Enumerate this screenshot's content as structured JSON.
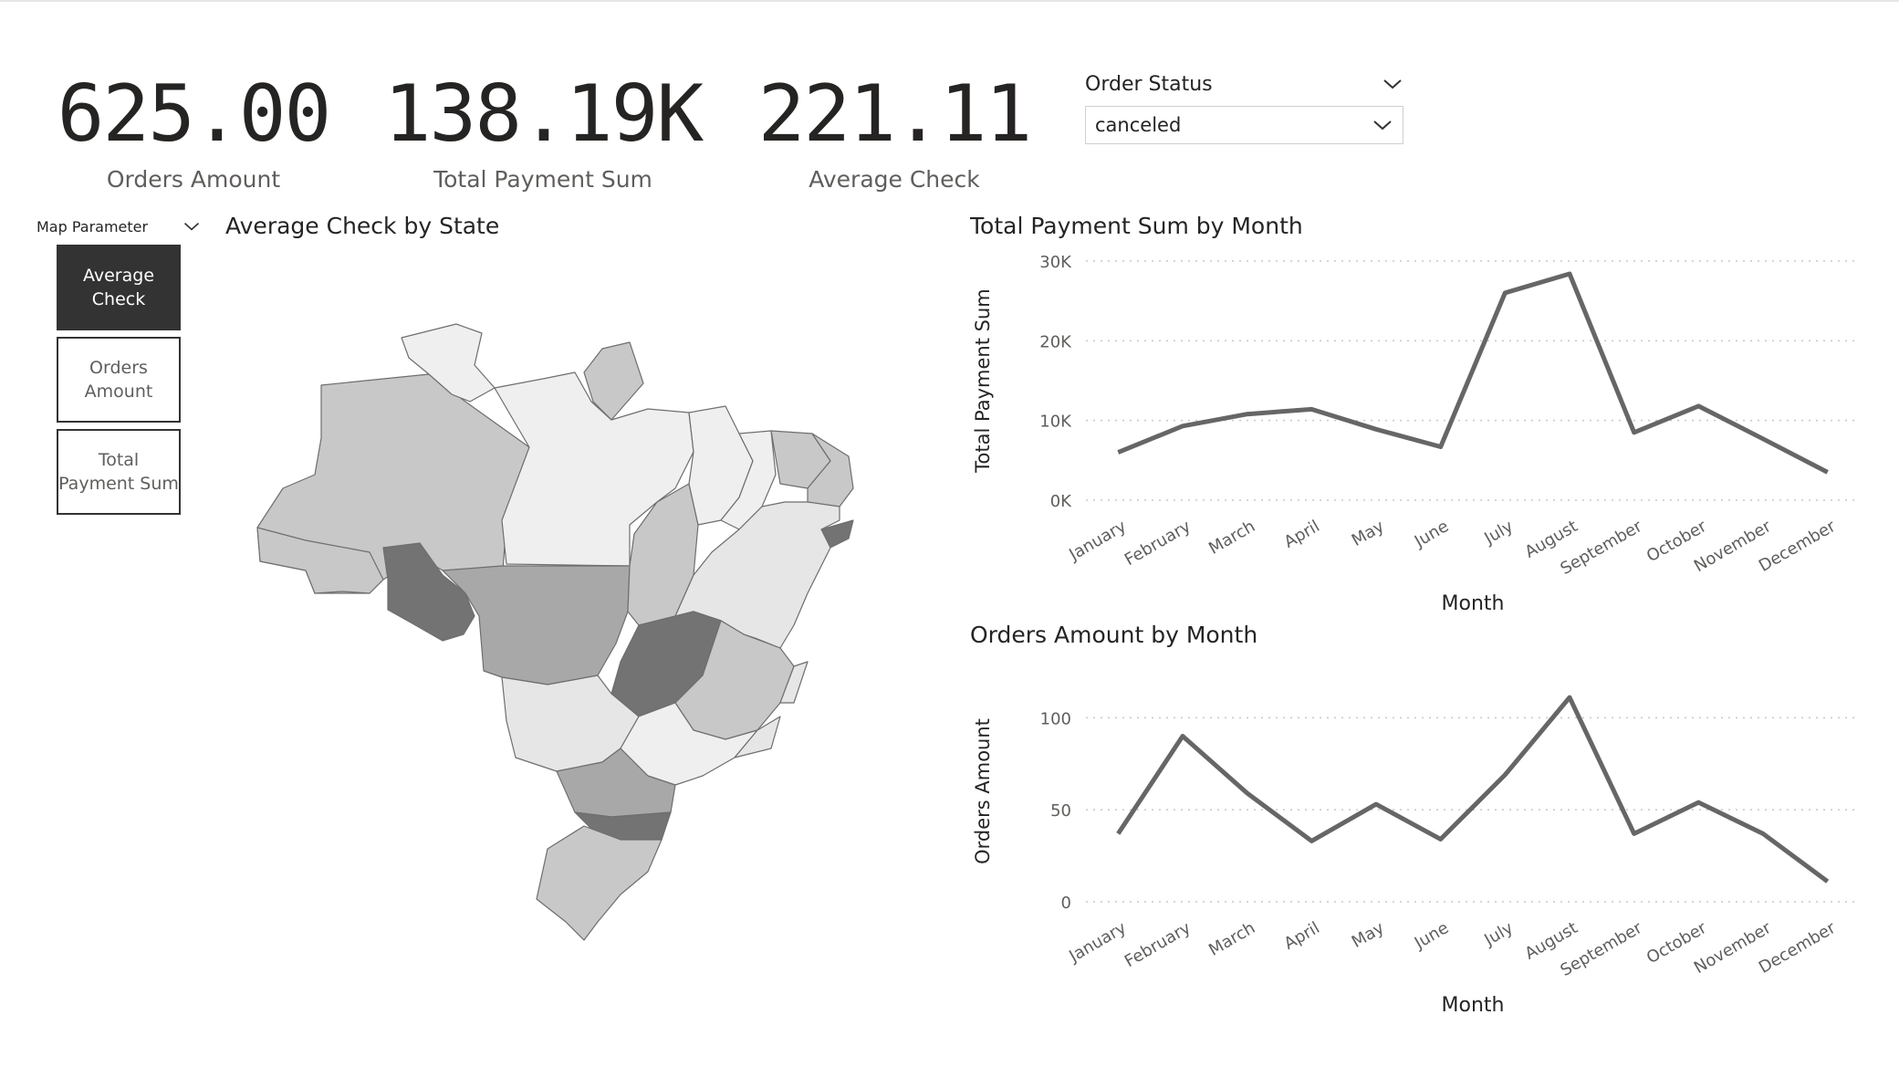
{
  "kpis": [
    {
      "value": "625.00",
      "label": "Orders Amount"
    },
    {
      "value": "138.19K",
      "label": "Total Payment Sum"
    },
    {
      "value": "221.11",
      "label": "Average Check"
    }
  ],
  "order_status": {
    "title": "Order Status",
    "selected": "canceled"
  },
  "map_parameter": {
    "title": "Map Parameter",
    "options": [
      "Average Check",
      "Orders Amount",
      "Total Payment Sum"
    ],
    "selected": "Average Check"
  },
  "map": {
    "title": "Average Check by State"
  },
  "chart_data": [
    {
      "type": "line",
      "title": "Total Payment Sum by Month",
      "xlabel": "Month",
      "ylabel": "Total Payment Sum",
      "categories": [
        "January",
        "February",
        "March",
        "April",
        "May",
        "June",
        "July",
        "August",
        "September",
        "October",
        "November",
        "December"
      ],
      "values": [
        6000,
        9300,
        10800,
        11400,
        8900,
        6700,
        26000,
        28400,
        8500,
        11800,
        7700,
        3500
      ],
      "ylim": [
        0,
        30000
      ],
      "yticks": [
        0,
        10000,
        20000,
        30000
      ],
      "ytick_labels": [
        "0K",
        "10K",
        "20K",
        "30K"
      ],
      "line_color": "#666666",
      "grid": true
    },
    {
      "type": "line",
      "title": "Orders Amount by Month",
      "xlabel": "Month",
      "ylabel": "Orders Amount",
      "categories": [
        "January",
        "February",
        "March",
        "April",
        "May",
        "June",
        "July",
        "August",
        "September",
        "October",
        "November",
        "December"
      ],
      "values": [
        37,
        90,
        59,
        33,
        53,
        34,
        69,
        111,
        37,
        54,
        37,
        11
      ],
      "ylim": [
        0,
        120
      ],
      "yticks": [
        0,
        50,
        100
      ],
      "ytick_labels": [
        "0",
        "50",
        "100"
      ],
      "line_color": "#666666",
      "grid": true
    }
  ]
}
